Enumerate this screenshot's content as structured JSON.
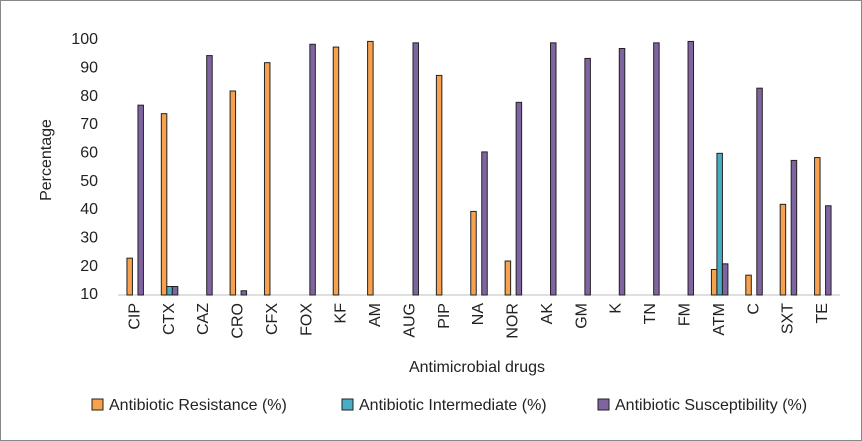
{
  "chart_data": {
    "type": "bar",
    "x_label": "Antimicrobial drugs",
    "y_label": "Percentage",
    "categories": [
      "CIP",
      "CTX",
      "CAZ",
      "CRO",
      "CFX",
      "FOX",
      "KF",
      "AM",
      "AUG",
      "PIP",
      "NA",
      "NOR",
      "AK",
      "GM",
      "K",
      "TN",
      "FM",
      "ATM",
      "C",
      "SXT",
      "TE"
    ],
    "series": [
      {
        "name": "Antibiotic Resistance (%)",
        "color": "#f7a04e",
        "values": [
          23,
          74,
          10,
          82,
          92,
          10,
          97.5,
          99.5,
          10,
          87.5,
          39.5,
          22,
          10,
          10,
          10,
          10,
          10,
          19,
          17,
          42,
          58.5
        ]
      },
      {
        "name": "Antibiotic Intermediate (%)",
        "color": "#4bacc6",
        "values": [
          10,
          13,
          10,
          10,
          10,
          10,
          10,
          10,
          10,
          10,
          10,
          10,
          10,
          10,
          10,
          10,
          10,
          60,
          10,
          10,
          10
        ]
      },
      {
        "name": "Antibiotic Susceptibility (%)",
        "color": "#8064a2",
        "values": [
          77,
          13,
          94.5,
          11.5,
          10,
          98.5,
          10,
          10,
          99,
          10,
          60.5,
          78,
          99,
          93.5,
          97,
          99,
          99.5,
          21,
          83,
          57.5,
          41.5
        ]
      }
    ],
    "ylim": [
      10,
      100
    ],
    "yticks": [
      10,
      20,
      30,
      40,
      50,
      60,
      70,
      80,
      90,
      100
    ],
    "grid": false,
    "legend": "bottom"
  }
}
